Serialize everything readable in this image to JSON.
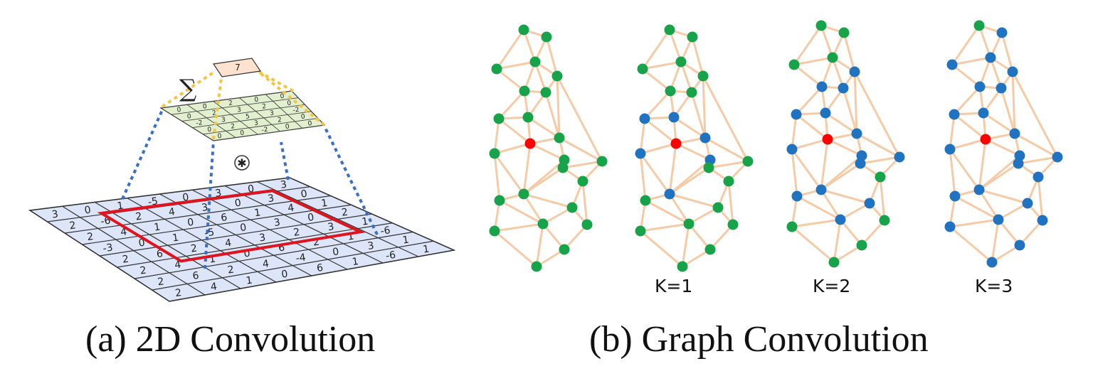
{
  "figure": {
    "conv2d_caption": "(a)  2D Convolution",
    "graph_caption": "(b)  Graph Convolution",
    "sum_symbol": "∑",
    "output_value": "7",
    "convolution_operator": "✱",
    "k_labels": [
      "K=1",
      "K=2",
      "K=3"
    ]
  },
  "conv2d": {
    "input_grid": [
      [
        "3",
        "0",
        "1",
        "-5",
        "0",
        "3",
        "0",
        "3"
      ],
      [
        "2",
        "-6",
        "2",
        "4",
        "3",
        "0",
        "3",
        "0"
      ],
      [
        "2",
        "4",
        "1",
        "0",
        "6",
        "1",
        "4",
        "1"
      ],
      [
        "-3",
        "0",
        "1",
        "-5",
        "0",
        "3",
        "0",
        "2"
      ],
      [
        "2",
        "6",
        "2",
        "4",
        "3",
        "2",
        "3",
        "1"
      ],
      [
        "2",
        "4",
        "1",
        "0",
        "6",
        "2",
        "1",
        "-6"
      ],
      [
        "2",
        "6",
        "2",
        "4",
        "-4",
        "0",
        "3",
        "1"
      ],
      [
        "2",
        "4",
        "1",
        "0",
        "6",
        "1",
        "-6",
        "1"
      ]
    ],
    "kernel_grid": [
      [
        "0",
        "0",
        "2",
        "0",
        "0"
      ],
      [
        "0",
        "2",
        "3",
        "2",
        "0"
      ],
      [
        "-2",
        "3",
        "5",
        "3",
        "-2"
      ],
      [
        "0",
        "2",
        "3",
        "2",
        "0"
      ],
      [
        "0",
        "0",
        "-2",
        "0",
        "0"
      ]
    ]
  },
  "colors": {
    "green_node": "#16a34a",
    "blue_node": "#1f73c0",
    "center_node": "#ff0000",
    "edge": "#f5cba7",
    "grid_fill": "#dde6f8",
    "kernel_fill": "#e3f0cf",
    "receptive_border": "#e0141e",
    "blue_dots": "#3a6fc4",
    "yellow_dots": "#f5c542",
    "output_fill": "#fde3cf"
  }
}
